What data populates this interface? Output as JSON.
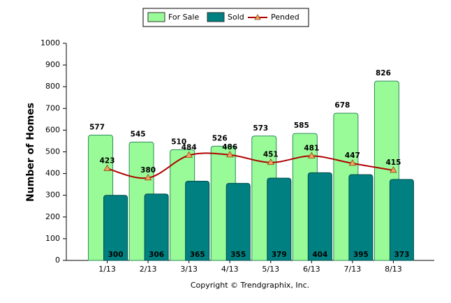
{
  "chart_data": {
    "type": "bar",
    "y_label": "Number of Homes",
    "footer": "Copyright © Trendgraphix, Inc.",
    "categories": [
      "1/13",
      "2/13",
      "3/13",
      "4/13",
      "5/13",
      "6/13",
      "7/13",
      "8/13"
    ],
    "series": [
      {
        "name": "For Sale",
        "type": "bar",
        "color": "#98fb98",
        "values": [
          577,
          545,
          510,
          526,
          573,
          585,
          678,
          826
        ]
      },
      {
        "name": "Sold",
        "type": "bar",
        "color": "#008080",
        "values": [
          300,
          306,
          365,
          355,
          379,
          404,
          395,
          373
        ]
      },
      {
        "name": "Pended",
        "type": "line",
        "color": "#b00000",
        "values": [
          423,
          380,
          484,
          486,
          451,
          481,
          447,
          415
        ]
      }
    ],
    "ylim": [
      0,
      1000
    ],
    "yticks": [
      0,
      100,
      200,
      300,
      400,
      500,
      600,
      700,
      800,
      900,
      1000
    ],
    "grid": false,
    "legend": "top"
  }
}
